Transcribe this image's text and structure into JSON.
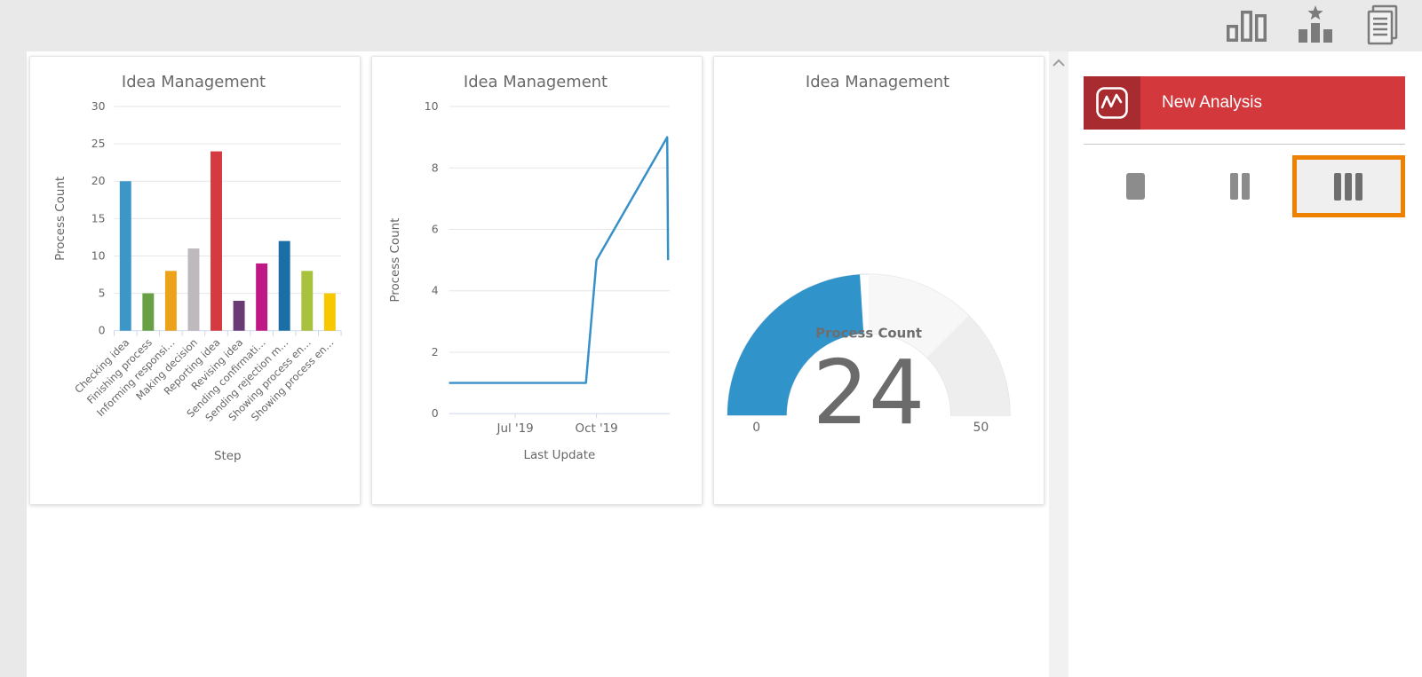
{
  "header": {
    "toolbar_icons": [
      {
        "name": "analyses-icon"
      },
      {
        "name": "favorites-icon"
      },
      {
        "name": "reports-icon"
      }
    ]
  },
  "sidebar": {
    "new_analysis": {
      "label": "New Analysis",
      "icon": "line-chart-icon"
    },
    "layout_options": [
      {
        "name": "one-column-layout",
        "selected": false
      },
      {
        "name": "two-column-layout",
        "selected": false
      },
      {
        "name": "three-column-layout",
        "selected": true
      }
    ],
    "button_color": "#D2383C",
    "button_dark_color": "#A72B2F",
    "selected_border_color": "#EE8100"
  },
  "chart_data": [
    {
      "type": "bar",
      "title": "Idea Management",
      "xlabel": "Step",
      "ylabel": "Process Count",
      "categories": [
        "Checking idea",
        "Finishing process",
        "Informing responsi…",
        "Making decision",
        "Reporting idea",
        "Revising idea",
        "Sending confirmati…",
        "Sending rejection m…",
        "Showing process en…",
        "Showing process en…"
      ],
      "values": [
        20,
        5,
        8,
        11,
        24,
        4,
        9,
        12,
        8,
        5
      ],
      "bar_colors": [
        "#3C96C8",
        "#68A046",
        "#EDA21B",
        "#BDB9BD",
        "#D43A3F",
        "#6A3A75",
        "#BF1786",
        "#1C6FA6",
        "#A9C23D",
        "#F7C700"
      ],
      "ylim": [
        0,
        30
      ],
      "yticks": [
        0,
        5,
        10,
        15,
        20,
        25,
        30
      ],
      "grid": true,
      "legend": "none"
    },
    {
      "type": "line",
      "title": "Idea Management",
      "xlabel": "Last Update",
      "ylabel": "Process Count",
      "ylim": [
        0,
        10
      ],
      "yticks": [
        0,
        2,
        4,
        6,
        8,
        10
      ],
      "xticks": [
        {
          "pos": 0.3,
          "label": "Jul '19"
        },
        {
          "pos": 0.668,
          "label": "Oct '19"
        }
      ],
      "points": [
        {
          "x": 0,
          "y": 1
        },
        {
          "x": 0.62,
          "y": 1
        },
        {
          "x": 0.668,
          "y": 5
        },
        {
          "x": 0.988,
          "y": 9
        },
        {
          "x": 0.992,
          "y": 5
        }
      ],
      "line_color": "#3791C8",
      "grid": true,
      "legend": "none"
    },
    {
      "type": "gauge",
      "title": "Idea Management",
      "label": "Process Count",
      "value": 24,
      "min": 0,
      "max": 50,
      "value_color": "#3093C9",
      "bands": [
        {
          "from": 25,
          "to": 37.5,
          "color": "#F7F7F7"
        },
        {
          "from": 37.5,
          "to": 50,
          "color": "#EEEEEE"
        }
      ]
    }
  ]
}
